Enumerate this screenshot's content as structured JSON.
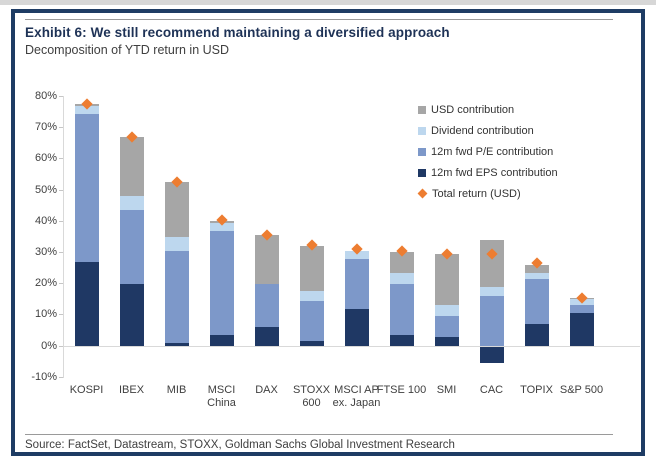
{
  "header": {
    "title": "Exhibit 6: We still recommend maintaining a diversified approach",
    "subtitle": "Decomposition of YTD return in USD"
  },
  "footer": {
    "source": "Source: FactSet, Datastream, STOXX, Goldman Sachs Global Investment Research"
  },
  "colors": {
    "usd": "#a6a6a6",
    "dividend": "#bdd7ee",
    "pe": "#7d98c9",
    "eps": "#1f3864",
    "total": "#ed7d31",
    "frame": "#1e3c64",
    "axis": "#d9d9d9"
  },
  "chart_data": {
    "type": "bar",
    "stacked": true,
    "title": "Exhibit 6: We still recommend maintaining a diversified approach",
    "subtitle": "Decomposition of YTD return in USD",
    "xlabel": "",
    "ylabel": "",
    "ylim": [
      -10,
      80
    ],
    "grid": false,
    "legend_position": "top-right",
    "y_ticks": [
      "80%",
      "70%",
      "60%",
      "50%",
      "40%",
      "30%",
      "20%",
      "10%",
      "0%",
      "-10%"
    ],
    "categories": [
      "KOSPI",
      "IBEX",
      "MIB",
      "MSCI China",
      "DAX",
      "STOXX 600",
      "MSCI AP ex. Japan",
      "FTSE 100",
      "SMI",
      "CAC",
      "TOPIX",
      "S&P 500"
    ],
    "category_labels": [
      [
        "KOSPI"
      ],
      [
        "IBEX"
      ],
      [
        "MIB"
      ],
      [
        "MSCI",
        "China"
      ],
      [
        "DAX"
      ],
      [
        "STOXX",
        "600"
      ],
      [
        "MSCI AP",
        "ex. Japan"
      ],
      [
        "FTSE 100"
      ],
      [
        "SMI"
      ],
      [
        "CAC"
      ],
      [
        "TOPIX"
      ],
      [
        "S&P 500"
      ]
    ],
    "series": [
      {
        "name": "USD contribution",
        "color_key": "usd",
        "values": [
          0.5,
          19.0,
          17.5,
          0.5,
          15.5,
          14.5,
          0.0,
          6.5,
          16.5,
          15.0,
          2.5,
          0.5
        ]
      },
      {
        "name": "Dividend contribution",
        "color_key": "dividend",
        "values": [
          2.5,
          4.5,
          4.5,
          2.5,
          0.0,
          3.0,
          2.5,
          3.5,
          3.5,
          3.0,
          2.0,
          2.0
        ]
      },
      {
        "name": "12m fwd P/E contribution",
        "color_key": "pe",
        "values": [
          47.5,
          23.5,
          29.5,
          33.5,
          14.0,
          13.0,
          16.0,
          16.5,
          6.5,
          16.0,
          14.5,
          2.5
        ]
      },
      {
        "name": "12m fwd EPS contribution",
        "color_key": "eps",
        "values": [
          27.0,
          20.0,
          1.0,
          3.5,
          6.0,
          1.5,
          12.0,
          3.5,
          3.0,
          -5.0,
          7.0,
          10.5
        ]
      }
    ],
    "markers": {
      "name": "Total return (USD)",
      "color_key": "total",
      "values": [
        77.5,
        67.0,
        52.5,
        40.5,
        35.5,
        32.5,
        31.0,
        30.5,
        29.5,
        29.5,
        26.5,
        15.5
      ]
    }
  }
}
